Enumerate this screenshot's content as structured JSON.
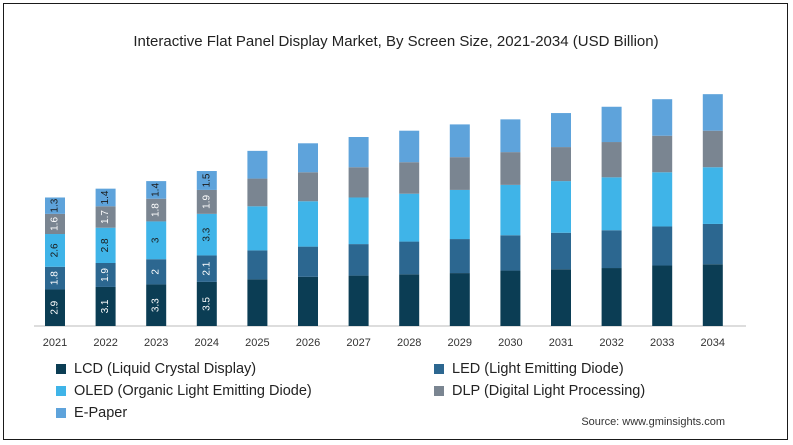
{
  "chart_data": {
    "type": "bar",
    "stacked": true,
    "title": "Interactive Flat Panel Display Market, By Screen Size, 2021-2034  (USD Billion)",
    "categories": [
      "2021",
      "2022",
      "2023",
      "2024",
      "2025",
      "2026",
      "2027",
      "2028",
      "2029",
      "2030",
      "2031",
      "2032",
      "2033",
      "2034"
    ],
    "series": [
      {
        "name": "LCD (Liquid Crystal Display)",
        "color": "#0b3d54",
        "values": [
          2.9,
          3.1,
          3.3,
          3.5,
          3.7,
          3.9,
          4.0,
          4.1,
          4.2,
          4.4,
          4.5,
          4.6,
          4.8,
          4.9
        ],
        "labels": [
          "2.9",
          "3.1",
          "3.3",
          "3.5",
          "",
          "",
          "",
          "",
          "",
          "",
          "",
          "",
          "",
          ""
        ]
      },
      {
        "name": "LED (Light Emitting Diode)",
        "color": "#2c6790",
        "values": [
          1.8,
          1.9,
          2.0,
          2.1,
          2.3,
          2.4,
          2.5,
          2.6,
          2.7,
          2.8,
          2.9,
          3.0,
          3.1,
          3.2
        ],
        "labels": [
          "1.8",
          "1.9",
          "2",
          "2.1",
          "",
          "",
          "",
          "",
          "",
          "",
          "",
          "",
          "",
          ""
        ]
      },
      {
        "name": "OLED (Organic Light Emitting Diode)",
        "color": "#3fb4e8",
        "values": [
          2.6,
          2.8,
          3.0,
          3.3,
          3.5,
          3.6,
          3.7,
          3.8,
          3.9,
          4.0,
          4.1,
          4.2,
          4.3,
          4.5
        ],
        "labels": [
          "2.6",
          "2.8",
          "3",
          "3.3",
          "",
          "",
          "",
          "",
          "",
          "",
          "",
          "",
          "",
          ""
        ]
      },
      {
        "name": "DLP (Digital Light Processing)",
        "color": "#7a8591",
        "values": [
          1.6,
          1.7,
          1.8,
          1.9,
          2.2,
          2.3,
          2.4,
          2.5,
          2.6,
          2.6,
          2.7,
          2.8,
          2.9,
          2.9
        ],
        "labels": [
          "1.6",
          "1.7",
          "1.8",
          "1.9",
          "",
          "",
          "",
          "",
          "",
          "",
          "",
          "",
          "",
          ""
        ]
      },
      {
        "name": "E-Paper",
        "color": "#5ea3db",
        "values": [
          1.3,
          1.4,
          1.4,
          1.5,
          2.2,
          2.3,
          2.4,
          2.5,
          2.6,
          2.6,
          2.7,
          2.8,
          2.9,
          2.9
        ],
        "labels": [
          "1.3",
          "1.4",
          "1.4",
          "1.5",
          "",
          "",
          "",
          "",
          "",
          "",
          "",
          "",
          "",
          ""
        ]
      }
    ],
    "legend_position": "bottom",
    "grid": false
  },
  "source": "Source: www.gminsights.com"
}
